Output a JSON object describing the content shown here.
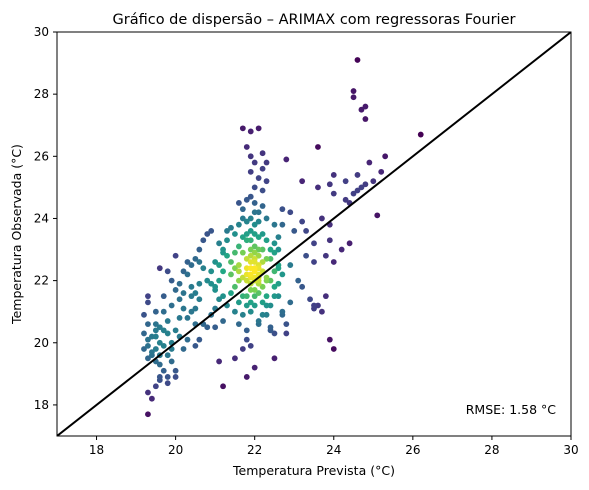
{
  "chart_data": {
    "type": "scatter",
    "title": "Gráfico de dispersão – ARIMAX com regressoras Fourier",
    "xlabel": "Temperatura Prevista (°C)",
    "ylabel": "Temperatura Observada (°C)",
    "xlim": [
      17,
      30
    ],
    "ylim": [
      17,
      30
    ],
    "xticks": [
      "18",
      "20",
      "22",
      "24",
      "26",
      "28",
      "30"
    ],
    "yticks": [
      "18",
      "20",
      "22",
      "24",
      "26",
      "28",
      "30"
    ],
    "reference_line": "y = x",
    "annotation": "RMSE: 1.58 °C",
    "colormap": "viridis (point density)",
    "colors": {
      "reference_line": "#000000",
      "low_density": "#440154",
      "high_density": "#fde725"
    },
    "points": [
      [
        24.6,
        29.1
      ],
      [
        24.5,
        28.1
      ],
      [
        24.5,
        27.9
      ],
      [
        24.8,
        27.6
      ],
      [
        24.7,
        27.5
      ],
      [
        24.8,
        27.2
      ],
      [
        26.2,
        26.7
      ],
      [
        25.3,
        26.0
      ],
      [
        25.2,
        25.5
      ],
      [
        25.0,
        25.2
      ],
      [
        24.8,
        25.1
      ],
      [
        24.9,
        25.8
      ],
      [
        24.7,
        25.0
      ],
      [
        24.6,
        24.9
      ],
      [
        24.5,
        24.8
      ],
      [
        24.3,
        25.2
      ],
      [
        24.0,
        25.4
      ],
      [
        23.9,
        25.1
      ],
      [
        24.0,
        24.8
      ],
      [
        24.3,
        24.6
      ],
      [
        25.1,
        24.1
      ],
      [
        24.4,
        24.5
      ],
      [
        24.2,
        23.0
      ],
      [
        24.0,
        22.6
      ],
      [
        23.3,
        22.8
      ],
      [
        23.8,
        22.8
      ],
      [
        23.5,
        22.6
      ],
      [
        24.6,
        25.4
      ],
      [
        23.6,
        26.3
      ],
      [
        23.3,
        23.6
      ],
      [
        23.2,
        23.9
      ],
      [
        23.0,
        23.6
      ],
      [
        22.7,
        24.3
      ],
      [
        22.9,
        24.2
      ],
      [
        22.7,
        23.8
      ],
      [
        22.6,
        23.0
      ],
      [
        22.8,
        25.9
      ],
      [
        23.7,
        24.0
      ],
      [
        23.9,
        23.8
      ],
      [
        23.2,
        25.2
      ],
      [
        23.6,
        25.0
      ],
      [
        23.9,
        23.3
      ],
      [
        23.5,
        23.2
      ],
      [
        24.4,
        23.2
      ],
      [
        23.1,
        22.0
      ],
      [
        22.9,
        21.3
      ],
      [
        23.2,
        21.8
      ],
      [
        23.4,
        21.4
      ],
      [
        23.6,
        21.2
      ],
      [
        23.8,
        21.5
      ],
      [
        23.5,
        21.2
      ],
      [
        23.9,
        20.1
      ],
      [
        24.0,
        19.8
      ],
      [
        23.7,
        21.0
      ],
      [
        23.5,
        21.1
      ],
      [
        22.5,
        22.3
      ],
      [
        22.6,
        21.5
      ],
      [
        22.7,
        20.9
      ],
      [
        22.8,
        20.6
      ],
      [
        22.5,
        20.3
      ],
      [
        22.4,
        20.4
      ],
      [
        22.3,
        22.0
      ],
      [
        22.6,
        22.4
      ],
      [
        22.6,
        22.5
      ],
      [
        22.5,
        21.8
      ],
      [
        22.4,
        22.0
      ],
      [
        22.3,
        23.3
      ],
      [
        22.4,
        23.0
      ],
      [
        22.5,
        22.9
      ],
      [
        22.6,
        23.4
      ],
      [
        22.5,
        23.8
      ],
      [
        22.7,
        22.2
      ],
      [
        22.9,
        22.5
      ],
      [
        21.8,
        22.7
      ],
      [
        21.7,
        22.9
      ],
      [
        21.9,
        22.4
      ],
      [
        21.6,
        22.5
      ],
      [
        21.7,
        23.4
      ],
      [
        21.9,
        23.6
      ],
      [
        21.8,
        23.9
      ],
      [
        22.1,
        24.2
      ],
      [
        22.0,
        24.5
      ],
      [
        21.9,
        24.7
      ],
      [
        22.2,
        24.9
      ],
      [
        22.0,
        25.0
      ],
      [
        22.1,
        25.3
      ],
      [
        21.9,
        25.5
      ],
      [
        22.0,
        25.8
      ],
      [
        21.9,
        26.0
      ],
      [
        22.2,
        26.1
      ],
      [
        21.8,
        26.3
      ],
      [
        21.7,
        26.9
      ],
      [
        21.9,
        26.8
      ],
      [
        22.1,
        26.9
      ],
      [
        22.3,
        25.8
      ],
      [
        22.2,
        25.6
      ],
      [
        22.3,
        25.2
      ],
      [
        21.7,
        24.0
      ],
      [
        21.6,
        23.8
      ],
      [
        21.4,
        23.7
      ],
      [
        21.5,
        23.5
      ],
      [
        21.8,
        23.3
      ],
      [
        21.3,
        23.3
      ],
      [
        21.2,
        23.0
      ],
      [
        21.4,
        22.6
      ],
      [
        21.5,
        22.9
      ],
      [
        21.6,
        22.3
      ],
      [
        21.7,
        22.1
      ],
      [
        21.5,
        21.8
      ],
      [
        21.4,
        21.6
      ],
      [
        21.7,
        21.5
      ],
      [
        21.6,
        21.3
      ],
      [
        21.5,
        21.0
      ],
      [
        21.3,
        21.2
      ],
      [
        21.2,
        21.5
      ],
      [
        21.1,
        21.4
      ],
      [
        21.0,
        21.7
      ],
      [
        20.9,
        21.9
      ],
      [
        21.0,
        21.1
      ],
      [
        21.2,
        20.7
      ],
      [
        21.0,
        20.5
      ],
      [
        20.9,
        20.9
      ],
      [
        20.6,
        21.4
      ],
      [
        20.5,
        21.1
      ],
      [
        20.7,
        20.6
      ],
      [
        20.8,
        20.5
      ],
      [
        21.6,
        20.6
      ],
      [
        21.8,
        20.4
      ],
      [
        21.7,
        19.8
      ],
      [
        21.9,
        19.9
      ],
      [
        21.8,
        18.9
      ],
      [
        21.5,
        19.5
      ],
      [
        22.0,
        19.2
      ],
      [
        21.7,
        20.9
      ],
      [
        22.1,
        20.6
      ],
      [
        22.3,
        20.9
      ],
      [
        22.4,
        20.5
      ],
      [
        21.8,
        21.2
      ],
      [
        21.9,
        21.3
      ],
      [
        21.9,
        21.0
      ],
      [
        22.0,
        22.1
      ],
      [
        22.1,
        22.0
      ],
      [
        21.9,
        21.9
      ],
      [
        22.0,
        21.7
      ],
      [
        22.1,
        21.6
      ],
      [
        22.0,
        21.5
      ],
      [
        21.9,
        22.2
      ],
      [
        22.0,
        22.4
      ],
      [
        22.1,
        22.5
      ],
      [
        21.9,
        22.6
      ],
      [
        22.0,
        22.7
      ],
      [
        22.1,
        22.8
      ],
      [
        21.9,
        23.0
      ],
      [
        22.0,
        23.1
      ],
      [
        22.2,
        23.0
      ],
      [
        22.3,
        22.7
      ],
      [
        22.2,
        22.3
      ],
      [
        22.3,
        22.1
      ],
      [
        22.2,
        21.8
      ],
      [
        22.3,
        21.5
      ],
      [
        22.2,
        21.3
      ],
      [
        22.3,
        21.2
      ],
      [
        21.8,
        22.0
      ],
      [
        21.8,
        22.4
      ],
      [
        22.1,
        22.2
      ],
      [
        21.9,
        23.3
      ],
      [
        22.2,
        23.5
      ],
      [
        22.1,
        23.9
      ],
      [
        21.6,
        22.0
      ],
      [
        21.4,
        22.2
      ],
      [
        21.5,
        22.4
      ],
      [
        21.3,
        22.8
      ],
      [
        21.2,
        22.3
      ],
      [
        21.1,
        22.5
      ],
      [
        21.1,
        22.0
      ],
      [
        21.0,
        21.8
      ],
      [
        20.8,
        23.5
      ],
      [
        20.9,
        23.6
      ],
      [
        20.7,
        23.3
      ],
      [
        20.6,
        23.0
      ],
      [
        20.6,
        22.6
      ],
      [
        20.5,
        22.7
      ],
      [
        20.4,
        22.5
      ],
      [
        20.3,
        22.2
      ],
      [
        20.2,
        22.3
      ],
      [
        20.1,
        21.9
      ],
      [
        20.0,
        21.7
      ],
      [
        19.9,
        22.0
      ],
      [
        19.8,
        22.3
      ],
      [
        19.6,
        22.4
      ],
      [
        20.0,
        22.8
      ],
      [
        20.3,
        22.6
      ],
      [
        20.2,
        21.6
      ],
      [
        20.1,
        21.4
      ],
      [
        20.4,
        21.5
      ],
      [
        19.7,
        21.5
      ],
      [
        19.9,
        21.2
      ],
      [
        20.2,
        21.1
      ],
      [
        20.4,
        21.0
      ],
      [
        20.5,
        20.6
      ],
      [
        20.3,
        20.8
      ],
      [
        20.1,
        20.8
      ],
      [
        19.8,
        20.7
      ],
      [
        19.6,
        20.5
      ],
      [
        19.5,
        20.6
      ],
      [
        19.8,
        20.3
      ],
      [
        20.0,
        20.4
      ],
      [
        20.1,
        20.2
      ],
      [
        20.3,
        20.1
      ],
      [
        20.5,
        19.9
      ],
      [
        20.6,
        20.1
      ],
      [
        19.9,
        20.0
      ],
      [
        19.7,
        19.9
      ],
      [
        19.5,
        19.8
      ],
      [
        19.3,
        19.9
      ],
      [
        19.4,
        20.2
      ],
      [
        19.5,
        20.4
      ],
      [
        19.3,
        20.6
      ],
      [
        19.5,
        21.0
      ],
      [
        19.3,
        21.3
      ],
      [
        19.3,
        21.5
      ],
      [
        19.2,
        20.9
      ],
      [
        19.7,
        21.0
      ],
      [
        19.3,
        19.5
      ],
      [
        19.4,
        19.6
      ],
      [
        19.5,
        19.4
      ],
      [
        19.6,
        19.3
      ],
      [
        19.8,
        19.6
      ],
      [
        19.9,
        19.4
      ],
      [
        19.7,
        19.1
      ],
      [
        19.6,
        18.9
      ],
      [
        19.8,
        18.7
      ],
      [
        19.5,
        18.6
      ],
      [
        19.6,
        18.8
      ],
      [
        19.4,
        18.2
      ],
      [
        19.3,
        18.4
      ],
      [
        19.9,
        19.8
      ],
      [
        20.2,
        19.8
      ],
      [
        20.0,
        19.1
      ],
      [
        19.8,
        18.9
      ],
      [
        19.3,
        17.7
      ],
      [
        20.0,
        18.9
      ],
      [
        19.2,
        19.8
      ],
      [
        19.4,
        19.7
      ],
      [
        19.5,
        20.2
      ],
      [
        19.7,
        20.4
      ],
      [
        19.6,
        20.0
      ],
      [
        19.2,
        20.3
      ],
      [
        19.3,
        20.1
      ],
      [
        19.6,
        19.6
      ],
      [
        20.8,
        22.0
      ],
      [
        20.9,
        22.3
      ],
      [
        21.0,
        22.6
      ],
      [
        21.2,
        22.9
      ],
      [
        21.3,
        23.6
      ],
      [
        21.1,
        23.2
      ],
      [
        20.7,
        22.4
      ],
      [
        20.6,
        21.9
      ],
      [
        20.5,
        21.6
      ],
      [
        20.4,
        21.8
      ],
      [
        21.2,
        18.6
      ],
      [
        21.1,
        19.4
      ],
      [
        22.5,
        19.5
      ],
      [
        22.8,
        20.3
      ],
      [
        22.7,
        21.0
      ],
      [
        22.4,
        21.2
      ],
      [
        22.5,
        21.5
      ],
      [
        22.6,
        21.9
      ],
      [
        22.2,
        20.9
      ],
      [
        22.1,
        20.7
      ],
      [
        21.8,
        20.1
      ],
      [
        22.4,
        22.7
      ],
      [
        22.5,
        23.2
      ],
      [
        21.6,
        23.1
      ],
      [
        21.7,
        24.3
      ],
      [
        21.8,
        24.6
      ],
      [
        22.0,
        23.8
      ],
      [
        22.1,
        23.4
      ],
      [
        22.3,
        24.0
      ],
      [
        22.2,
        24.4
      ],
      [
        21.6,
        24.5
      ],
      [
        22.0,
        24.2
      ],
      [
        21.9,
        24.0
      ],
      [
        21.8,
        23.5
      ],
      [
        22.0,
        23.5
      ],
      [
        22.1,
        23.0
      ],
      [
        21.8,
        22.2
      ],
      [
        21.9,
        21.7
      ],
      [
        21.8,
        21.5
      ],
      [
        22.0,
        21.2
      ],
      [
        22.2,
        22.6
      ],
      [
        22.1,
        22.4
      ],
      [
        22.0,
        22.0
      ],
      [
        22.1,
        21.9
      ],
      [
        21.9,
        22.1
      ],
      [
        22.0,
        22.3
      ],
      [
        22.0,
        22.6
      ],
      [
        22.1,
        22.1
      ],
      [
        21.9,
        22.8
      ],
      [
        22.0,
        22.9
      ]
    ]
  }
}
